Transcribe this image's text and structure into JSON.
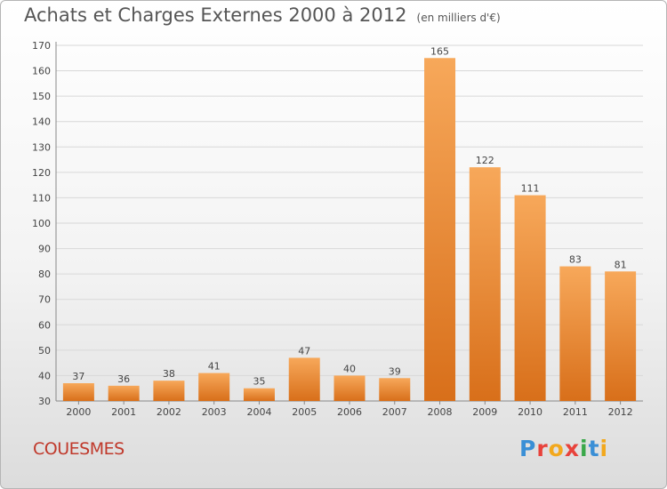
{
  "title": "Achats et Charges Externes 2000 à 2012",
  "subtitle": "(en milliers d'€)",
  "place": "COUESMES",
  "logo": "Proxiti",
  "colors": {
    "bar_top": "#f7a85a",
    "bar_bottom": "#d86f1a",
    "grid": "#d8d8d8",
    "axis_text": "#444444",
    "place": "#c0392b"
  },
  "chart_data": {
    "type": "bar",
    "categories": [
      "2000",
      "2001",
      "2002",
      "2003",
      "2004",
      "2005",
      "2006",
      "2007",
      "2008",
      "2009",
      "2010",
      "2011",
      "2012"
    ],
    "values": [
      37,
      36,
      38,
      41,
      35,
      47,
      40,
      39,
      165,
      122,
      111,
      83,
      81
    ],
    "ylim": [
      30,
      170
    ],
    "yticks": [
      30,
      40,
      50,
      60,
      70,
      80,
      90,
      100,
      110,
      120,
      130,
      140,
      150,
      160,
      170
    ],
    "grid": true,
    "data_labels": true
  }
}
